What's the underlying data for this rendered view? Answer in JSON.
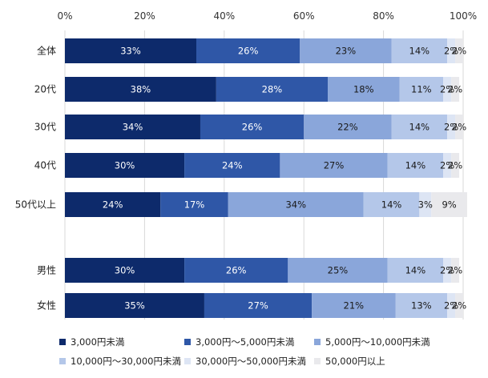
{
  "chart_data": {
    "type": "bar",
    "orientation": "horizontal",
    "stacked": true,
    "title": "",
    "xlabel": "",
    "ylabel": "",
    "xlim": [
      0,
      100
    ],
    "x_ticks": [
      "0%",
      "20%",
      "40%",
      "60%",
      "80%",
      "100%"
    ],
    "x_tick_values": [
      0,
      20,
      40,
      60,
      80,
      100
    ],
    "x_axis_position": "top",
    "grid": true,
    "legend_position": "bottom",
    "groups": [
      {
        "categories": [
          "全体",
          "20代",
          "30代",
          "40代",
          "50代以上"
        ]
      },
      {
        "categories": [
          "男性",
          "女性"
        ]
      }
    ],
    "categories": [
      "全体",
      "20代",
      "30代",
      "40代",
      "50代以上",
      "男性",
      "女性"
    ],
    "series": [
      {
        "name": "3,000円未満",
        "color": "#0d2a6b",
        "values": [
          33,
          38,
          34,
          30,
          24,
          30,
          35
        ]
      },
      {
        "name": "3,000円～5,000円未満",
        "color": "#2f57a7",
        "values": [
          26,
          28,
          26,
          24,
          17,
          26,
          27
        ]
      },
      {
        "name": "5,000円～10,000円未満",
        "color": "#8aa6da",
        "values": [
          23,
          18,
          22,
          27,
          34,
          25,
          21
        ]
      },
      {
        "name": "10,000円～30,000円未満",
        "color": "#b4c7e9",
        "values": [
          14,
          11,
          14,
          14,
          14,
          14,
          13
        ]
      },
      {
        "name": "30,000円～50,000円未満",
        "color": "#dde5f4",
        "values": [
          2,
          2,
          2,
          2,
          3,
          2,
          2
        ]
      },
      {
        "name": "50,000円以上",
        "color": "#e9e9ec",
        "values": [
          2,
          2,
          2,
          2,
          9,
          2,
          2
        ]
      }
    ],
    "label_colors": [
      "#ffffff",
      "#ffffff",
      "#1a1a1a",
      "#1a1a1a",
      "#1a1a1a",
      "#1a1a1a"
    ]
  }
}
